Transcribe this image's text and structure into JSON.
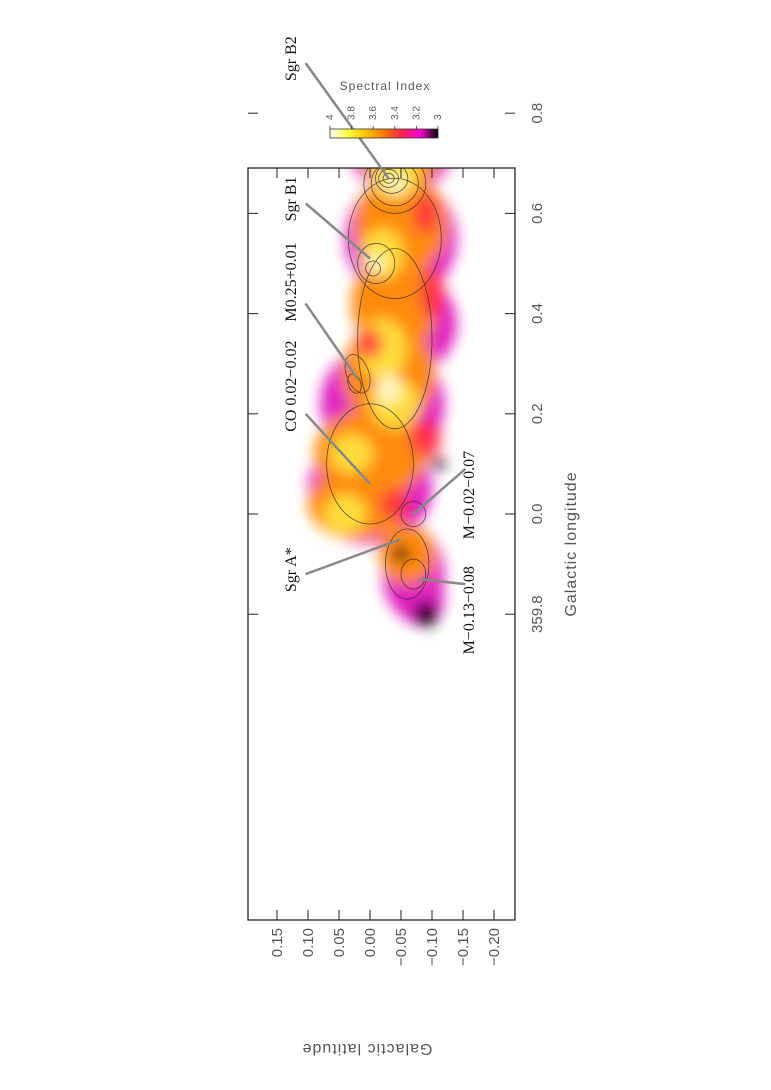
{
  "chart_data": {
    "type": "heatmap",
    "title": "",
    "xlabel": "Galactic longitude",
    "ylabel": "Galactic latitude",
    "xlim": [
      0.95,
      359.72
    ],
    "ylim": [
      -0.24,
      0.19
    ],
    "x_ticks": [
      "0.8",
      "0.6",
      "0.4",
      "0.2",
      "0.0",
      "359.8"
    ],
    "y_ticks": [
      "0.15",
      "0.10",
      "0.05",
      "0.00",
      "−0.05",
      "−0.10",
      "−0.15",
      "−0.20"
    ],
    "colorbar": {
      "title": "Spectral Index",
      "range": [
        4,
        3
      ],
      "ticks": [
        "4",
        "3.8",
        "3.6",
        "3.4",
        "3.2",
        "3"
      ],
      "colors": [
        "#ffffff",
        "#ffff40",
        "#ffc000",
        "#ff7a00",
        "#ff2050",
        "#ff00d0",
        "#000000"
      ]
    },
    "annotations": [
      {
        "label": "Sgr B2",
        "text_l": 0.9,
        "text_b": 0.12,
        "point_l": 0.67,
        "point_b": -0.03
      },
      {
        "label": "Sgr B1",
        "text_l": 0.62,
        "text_b": 0.12,
        "point_l": 0.51,
        "point_b": 0.0
      },
      {
        "label": "M0.25+0.01",
        "text_l": 0.42,
        "text_b": 0.12,
        "point_l": 0.27,
        "point_b": 0.02
      },
      {
        "label": "CO 0.02−0.02",
        "text_l": 0.2,
        "text_b": 0.12,
        "point_l": 0.06,
        "point_b": 0.0
      },
      {
        "label": "Sgr A*",
        "text_l": 359.88,
        "text_b": 0.12,
        "point_l": 359.95,
        "point_b": -0.05
      },
      {
        "label": "M−0.02−0.07",
        "text_l": 0.09,
        "text_b": -0.17,
        "point_l": 0.0,
        "point_b": -0.07
      },
      {
        "label": "M−0.13−0.08",
        "text_l": 359.86,
        "text_b": -0.17,
        "point_l": 359.87,
        "point_b": -0.08
      }
    ]
  }
}
